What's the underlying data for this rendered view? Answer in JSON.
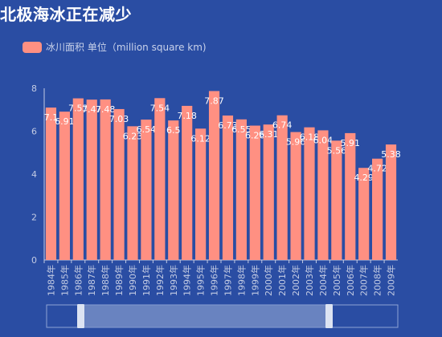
{
  "title": "北极海冰正在减少",
  "legend": {
    "label": "冰川面积 单位（million square km)"
  },
  "colors": {
    "background": "#2a4da3",
    "bar": "#ff9082",
    "axis": "#c3cbe3",
    "slider_fill": "#7f95c9"
  },
  "chart_data": {
    "type": "bar",
    "title": "北极海冰正在减少",
    "xlabel": "",
    "ylabel": "",
    "ylim": [
      0,
      8
    ],
    "yticks": [
      0,
      2,
      4,
      6,
      8
    ],
    "grid": false,
    "legend_position": "top-left",
    "categories": [
      "1984年",
      "1985年",
      "1986年",
      "1987年",
      "1988年",
      "1989年",
      "1990年",
      "1991年",
      "1992年",
      "1993年",
      "1994年",
      "1995年",
      "1996年",
      "1997年",
      "1998年",
      "1999年",
      "2000年",
      "2001年",
      "2002年",
      "2003年",
      "2004年",
      "2005年",
      "2006年",
      "2007年",
      "2008年",
      "2009年"
    ],
    "series": [
      {
        "name": "冰川面积 单位（million square km)",
        "values": [
          7.1,
          6.91,
          7.53,
          7.47,
          7.48,
          7.03,
          6.23,
          6.54,
          7.54,
          6.5,
          7.18,
          6.12,
          7.87,
          6.73,
          6.55,
          6.26,
          6.31,
          6.74,
          5.96,
          6.18,
          6.04,
          5.56,
          5.91,
          4.29,
          4.72,
          5.38
        ]
      }
    ],
    "zoom_range_percent": [
      0,
      100
    ]
  }
}
